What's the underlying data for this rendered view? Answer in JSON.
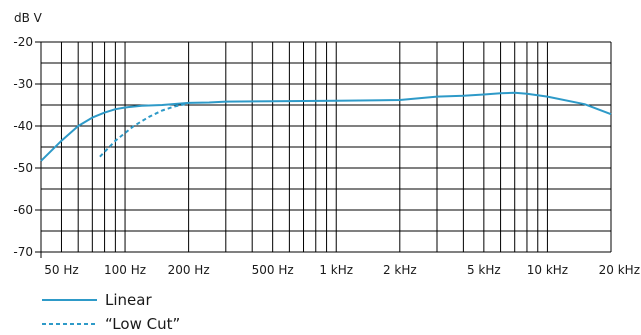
{
  "chart_data": {
    "type": "line",
    "ylabel": "dB V",
    "xscale": "log",
    "xlim": [
      40,
      20000
    ],
    "ylim": [
      -70,
      -20
    ],
    "grid": true,
    "legend_position": "bottom-left",
    "x_ticks": [
      {
        "value": 50,
        "label": "50 Hz"
      },
      {
        "value": 100,
        "label": "100 Hz"
      },
      {
        "value": 200,
        "label": "200 Hz"
      },
      {
        "value": 500,
        "label": "500 Hz"
      },
      {
        "value": 1000,
        "label": "1 kHz"
      },
      {
        "value": 2000,
        "label": "2 kHz"
      },
      {
        "value": 5000,
        "label": "5 kHz"
      },
      {
        "value": 10000,
        "label": "10 kHz"
      },
      {
        "value": 20000,
        "label": "20 kHz"
      }
    ],
    "y_ticks": [
      {
        "value": -20,
        "label": "-20"
      },
      {
        "value": -30,
        "label": "-30"
      },
      {
        "value": -40,
        "label": "-40"
      },
      {
        "value": -50,
        "label": "-50"
      },
      {
        "value": -60,
        "label": "-60"
      },
      {
        "value": -70,
        "label": "-70"
      }
    ],
    "series": [
      {
        "name": "Linear",
        "style": "solid",
        "color": "#2e9ac8",
        "points": [
          [
            40,
            -48.3
          ],
          [
            50,
            -43.5
          ],
          [
            60,
            -40.0
          ],
          [
            70,
            -38.0
          ],
          [
            80,
            -36.8
          ],
          [
            90,
            -36.0
          ],
          [
            100,
            -35.6
          ],
          [
            120,
            -35.2
          ],
          [
            150,
            -35.0
          ],
          [
            200,
            -34.5
          ],
          [
            250,
            -34.4
          ],
          [
            300,
            -34.2
          ],
          [
            500,
            -34.1
          ],
          [
            1000,
            -34.0
          ],
          [
            2000,
            -33.8
          ],
          [
            3000,
            -33.0
          ],
          [
            4000,
            -32.8
          ],
          [
            5000,
            -32.5
          ],
          [
            6000,
            -32.2
          ],
          [
            7000,
            -32.1
          ],
          [
            8000,
            -32.3
          ],
          [
            10000,
            -33.0
          ],
          [
            15000,
            -34.8
          ],
          [
            20000,
            -37.2
          ]
        ]
      },
      {
        "name": "“Low Cut”",
        "style": "dashed",
        "color": "#2e9ac8",
        "points": [
          [
            76,
            -47.3
          ],
          [
            90,
            -43.5
          ],
          [
            110,
            -40.0
          ],
          [
            130,
            -37.8
          ],
          [
            150,
            -36.3
          ],
          [
            170,
            -35.4
          ],
          [
            200,
            -34.6
          ]
        ]
      }
    ]
  }
}
